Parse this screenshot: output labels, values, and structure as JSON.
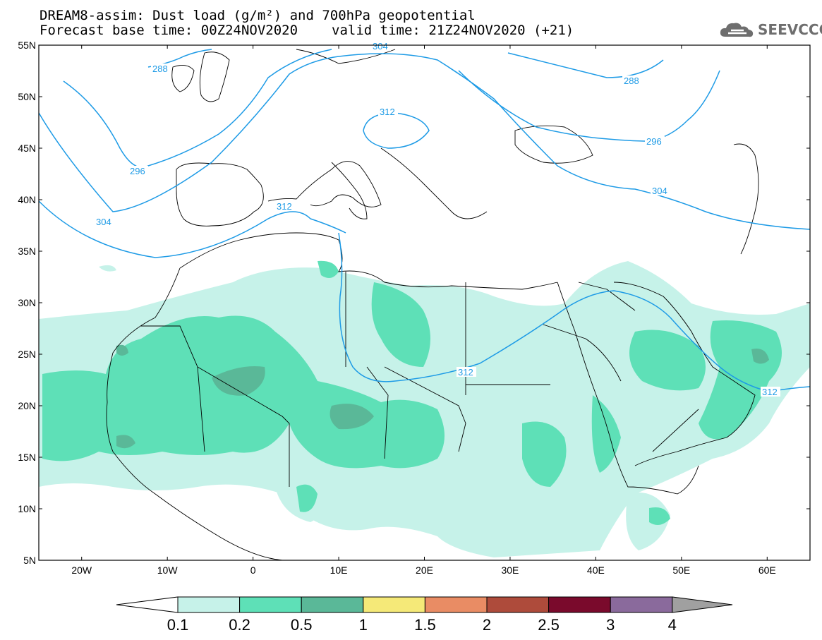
{
  "header": {
    "title_line1": "DREAM8-assim: Dust load (g/m²) and 700hPa geopotential",
    "title_line2_left": "Forecast base time: 00Z24NOV2020",
    "title_line2_right": "valid time: 21Z24NOV2020 (+21)"
  },
  "logo": {
    "text": "SEEVCCC",
    "icon": "cloud-icon"
  },
  "axes": {
    "lat_labels": [
      "55N",
      "50N",
      "45N",
      "40N",
      "35N",
      "30N",
      "25N",
      "20N",
      "15N",
      "10N",
      "5N"
    ],
    "lon_labels": [
      "20W",
      "10W",
      "0",
      "10E",
      "20E",
      "30E",
      "40E",
      "50E",
      "60E"
    ]
  },
  "contour_labels": [
    "288",
    "288",
    "296",
    "296",
    "304",
    "304",
    "304",
    "312",
    "312",
    "312",
    "312"
  ],
  "colorbar": {
    "ticks": [
      "0.1",
      "0.2",
      "0.5",
      "1",
      "1.5",
      "2",
      "2.5",
      "3",
      "4"
    ],
    "colors": [
      "#c6f2e9",
      "#5ee0b7",
      "#5ab898",
      "#f5e978",
      "#e98c64",
      "#ae4b3b",
      "#7a0a2c",
      "#8a6a9c"
    ],
    "under_color": "#ffffff",
    "over_color": "#a0a0a0"
  },
  "chart_data": {
    "type": "heatmap",
    "title": "DREAM8-assim: Dust load (g/m²) and 700hPa geopotential",
    "variable": "Dust load (g/m²)",
    "contour_variable": "700hPa geopotential",
    "contour_levels": [
      288,
      296,
      304,
      312
    ],
    "color_levels": [
      0.1,
      0.2,
      0.5,
      1,
      1.5,
      2,
      2.5,
      3,
      4
    ],
    "lon_range": [
      -25,
      65
    ],
    "lat_range": [
      5,
      55
    ],
    "grid": false
  }
}
